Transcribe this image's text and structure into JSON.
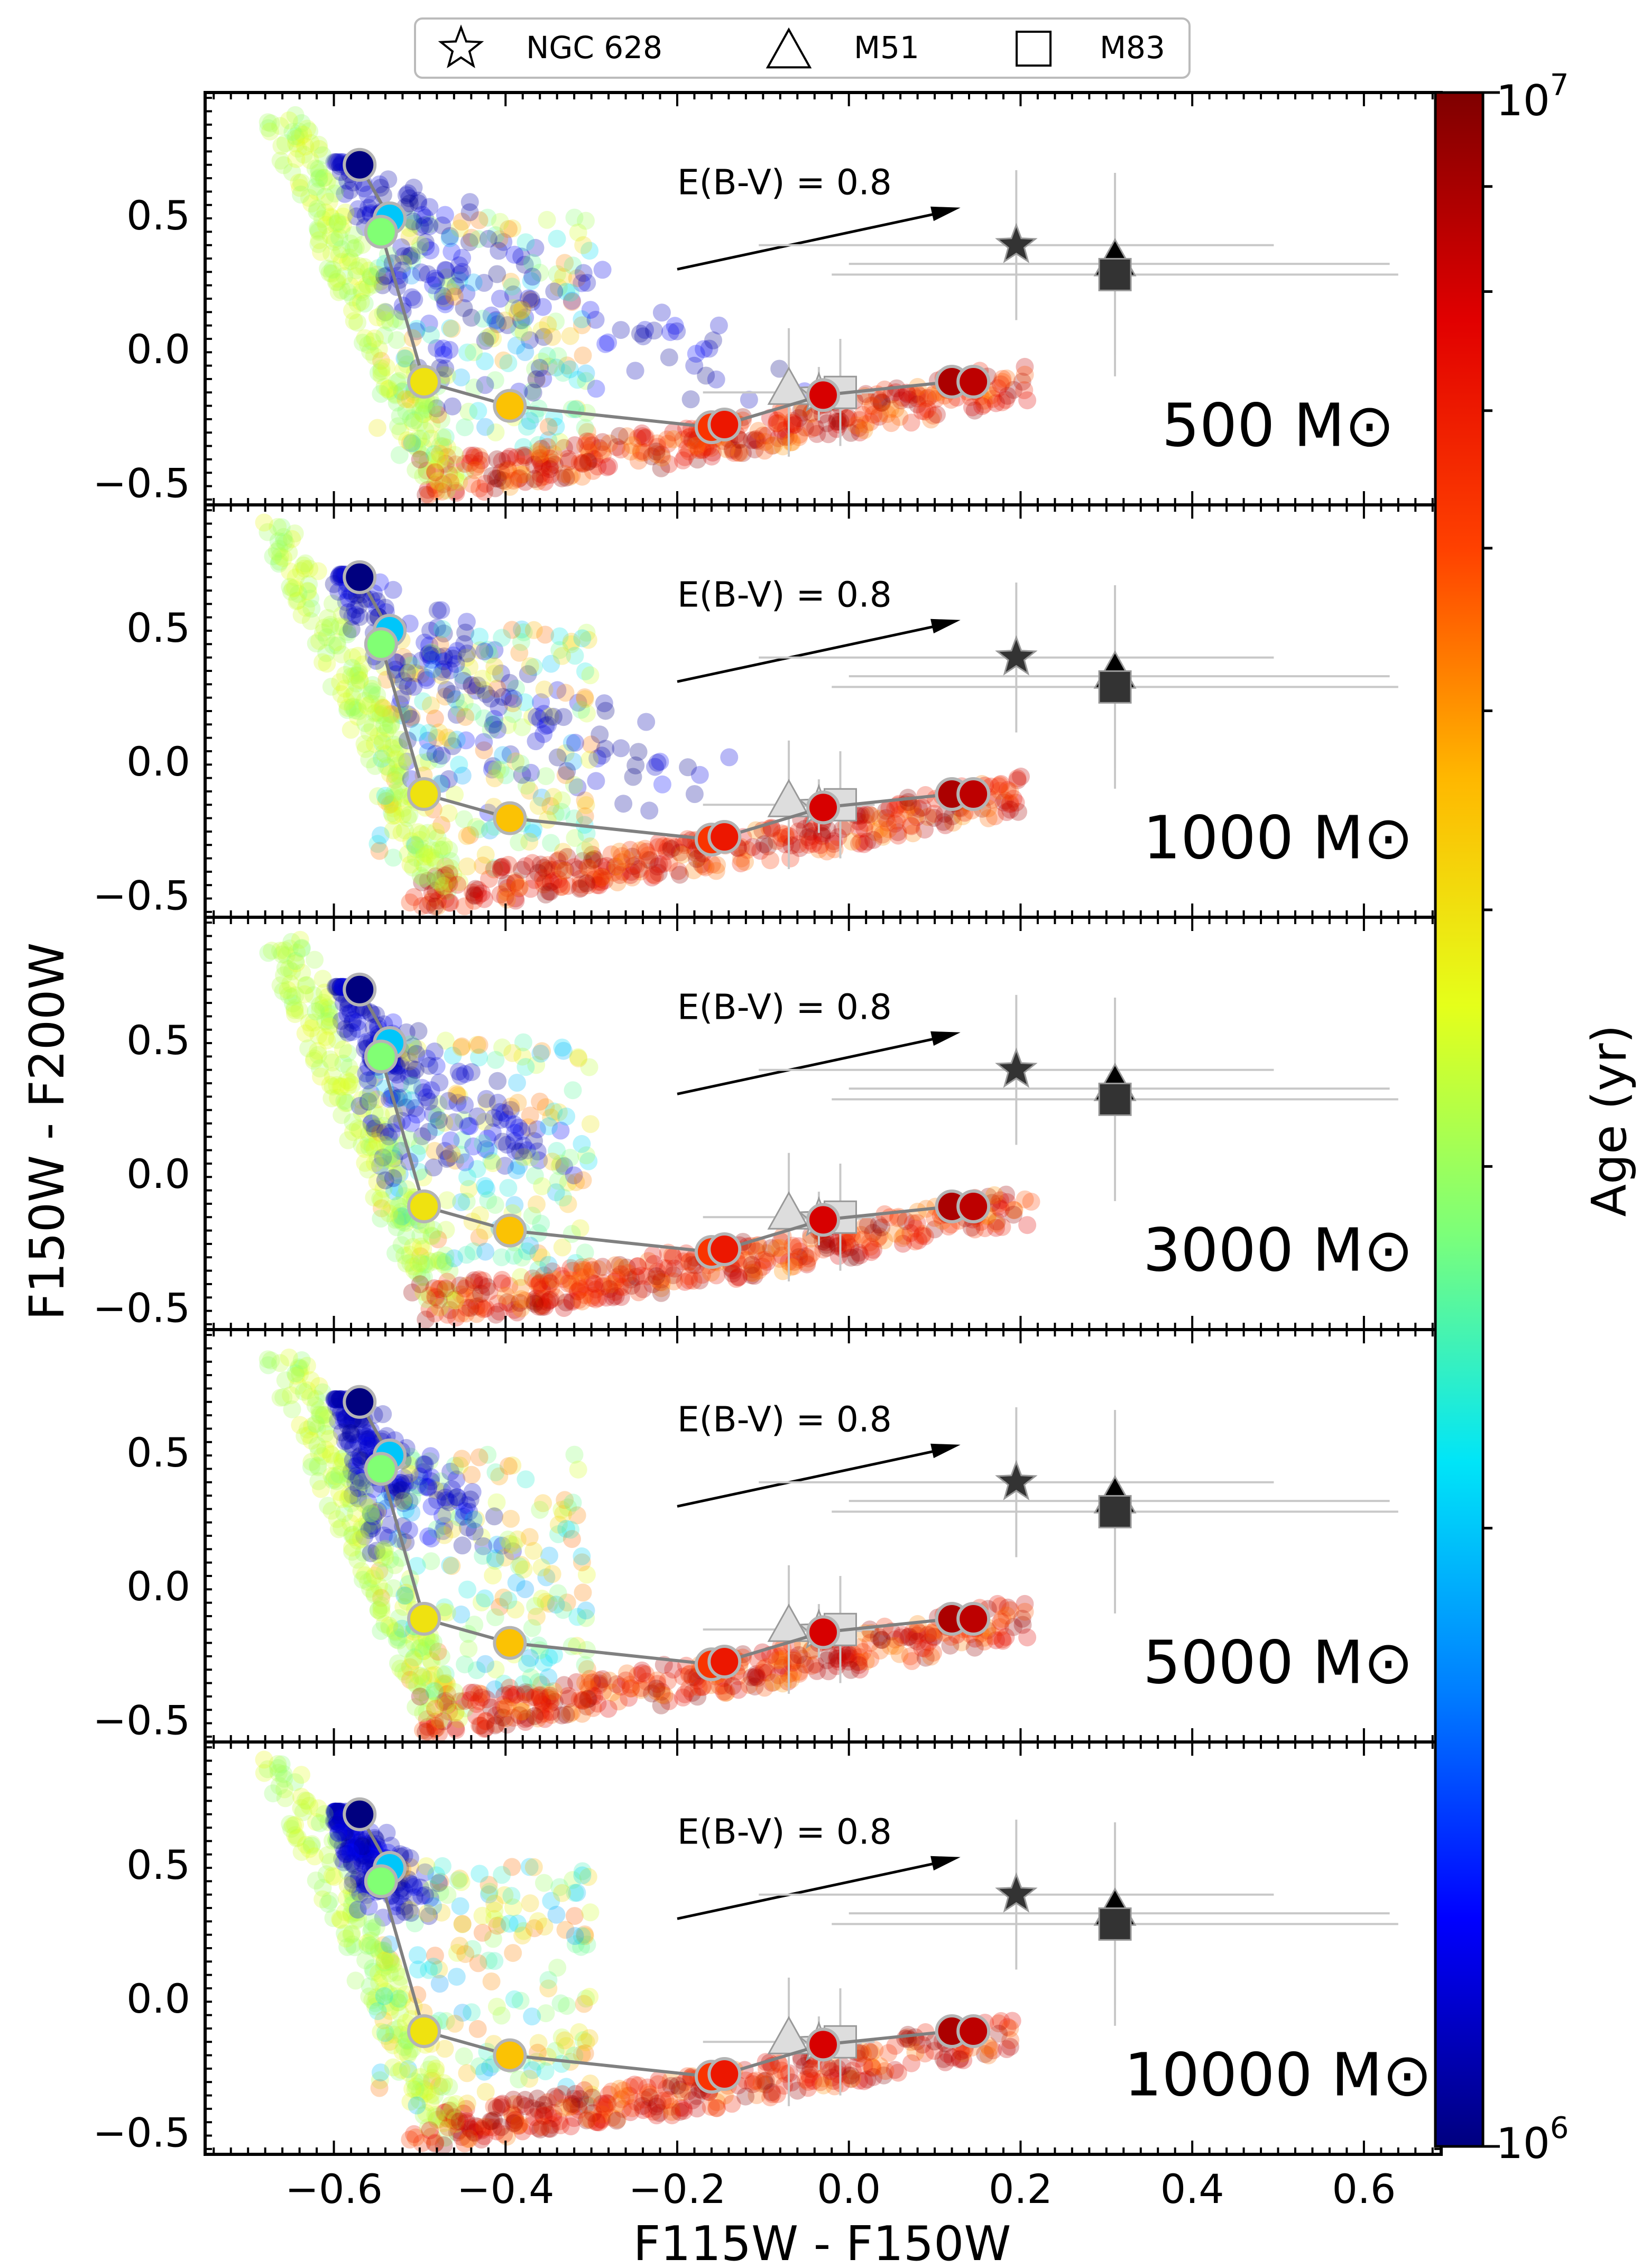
{
  "legend": {
    "entries": [
      {
        "marker": "star-icon",
        "label": "NGC 628"
      },
      {
        "marker": "triangle-icon",
        "label": "M51"
      },
      {
        "marker": "square-icon",
        "label": "M83"
      }
    ]
  },
  "colorbar": {
    "label": "Age (yr)",
    "top_label": {
      "base": "10",
      "exp": "7"
    },
    "bottom_label": {
      "base": "10",
      "exp": "6"
    },
    "colormap": [
      "#00007f",
      "#0000ff",
      "#007fff",
      "#00e5f8",
      "#7cff79",
      "#e5ff1a",
      "#ffb700",
      "#ff4100",
      "#e10000",
      "#7f0000"
    ]
  },
  "arrow_label": "E(B-V) = 0.8",
  "panels": [
    {
      "mass_label": "500",
      "unit": "M⊙"
    },
    {
      "mass_label": "1000",
      "unit": "M⊙"
    },
    {
      "mass_label": "3000",
      "unit": "M⊙"
    },
    {
      "mass_label": "5000",
      "unit": "M⊙"
    },
    {
      "mass_label": "10000",
      "unit": "M⊙"
    }
  ],
  "chart_data": {
    "type": "scatter",
    "xlabel": "F115W - F150W",
    "ylabel": "F150W - F200W",
    "xlim": [
      -0.75,
      0.69
    ],
    "ylim": [
      -0.58,
      0.96
    ],
    "x_ticks": [
      -0.6,
      -0.4,
      -0.2,
      0.0,
      0.2,
      0.4,
      0.6
    ],
    "x_tick_labels": [
      "−0.6",
      "−0.4",
      "−0.2",
      "0.0",
      "0.2",
      "0.4",
      "0.6"
    ],
    "y_ticks": [
      -0.5,
      0.0,
      0.5
    ],
    "y_tick_labels": [
      "−0.5",
      "0.0",
      "0.5"
    ],
    "reddening_vector": {
      "from": [
        -0.2,
        0.3
      ],
      "to": [
        0.13,
        0.53
      ],
      "label": "E(B-V) = 0.8"
    },
    "model_track": {
      "x": [
        -0.57,
        -0.535,
        -0.545,
        -0.495,
        -0.395,
        -0.16,
        -0.145,
        -0.03,
        0.12,
        0.145
      ],
      "y": [
        0.69,
        0.49,
        0.44,
        -0.12,
        -0.21,
        -0.29,
        -0.28,
        -0.17,
        -0.12,
        -0.12
      ],
      "age_frac": [
        0.0,
        0.3,
        0.45,
        0.6,
        0.65,
        0.8,
        0.85,
        0.9,
        0.95,
        0.93
      ]
    },
    "observed_points": [
      {
        "name": "NGC 628 (red)",
        "marker": "star",
        "x": 0.195,
        "y": 0.39,
        "xerr": [
          0.3,
          0.3
        ],
        "yerr": [
          0.28,
          0.28
        ],
        "fill": "#333333"
      },
      {
        "name": "M51 (red)",
        "marker": "triangle",
        "x": 0.31,
        "y": 0.32,
        "xerr": [
          0.31,
          0.32
        ],
        "yerr": [
          0.34,
          0.34
        ],
        "fill": "#000000"
      },
      {
        "name": "M83 (red)",
        "marker": "square",
        "x": 0.31,
        "y": 0.28,
        "xerr": [
          0.33,
          0.33
        ],
        "yerr": [
          0.38,
          0.38
        ],
        "fill": "#333333"
      },
      {
        "name": "NGC 628 (corrected)",
        "marker": "star",
        "x": -0.035,
        "y": -0.165,
        "xerr": [
          0.05,
          0.05
        ],
        "yerr": [
          0.1,
          0.1
        ],
        "fill": "#dddddd"
      },
      {
        "name": "M51 (corrected)",
        "marker": "triangle",
        "x": -0.07,
        "y": -0.16,
        "xerr": [
          0.1,
          0.1
        ],
        "yerr": [
          0.24,
          0.24
        ],
        "fill": "#dddddd"
      },
      {
        "name": "M83 (corrected)",
        "marker": "square",
        "x": -0.01,
        "y": -0.16,
        "xerr": [
          0.03,
          0.03
        ],
        "yerr": [
          0.2,
          0.2
        ],
        "fill": "#dddddd"
      }
    ],
    "simulated_clusters": [
      {
        "mass": 500,
        "old_lobe_extent": {
          "x": [
            -0.6,
            -0.1
          ],
          "y": [
            -0.2,
            0.7
          ]
        }
      },
      {
        "mass": 1000,
        "old_lobe_extent": {
          "x": [
            -0.6,
            -0.15
          ],
          "y": [
            -0.2,
            0.7
          ]
        }
      },
      {
        "mass": 3000,
        "old_lobe_extent": {
          "x": [
            -0.6,
            -0.35
          ],
          "y": [
            0.0,
            0.7
          ]
        }
      },
      {
        "mass": 5000,
        "old_lobe_extent": {
          "x": [
            -0.6,
            -0.42
          ],
          "y": [
            0.15,
            0.7
          ]
        }
      },
      {
        "mass": 10000,
        "old_lobe_extent": {
          "x": [
            -0.6,
            -0.49
          ],
          "y": [
            0.33,
            0.7
          ]
        }
      }
    ]
  }
}
